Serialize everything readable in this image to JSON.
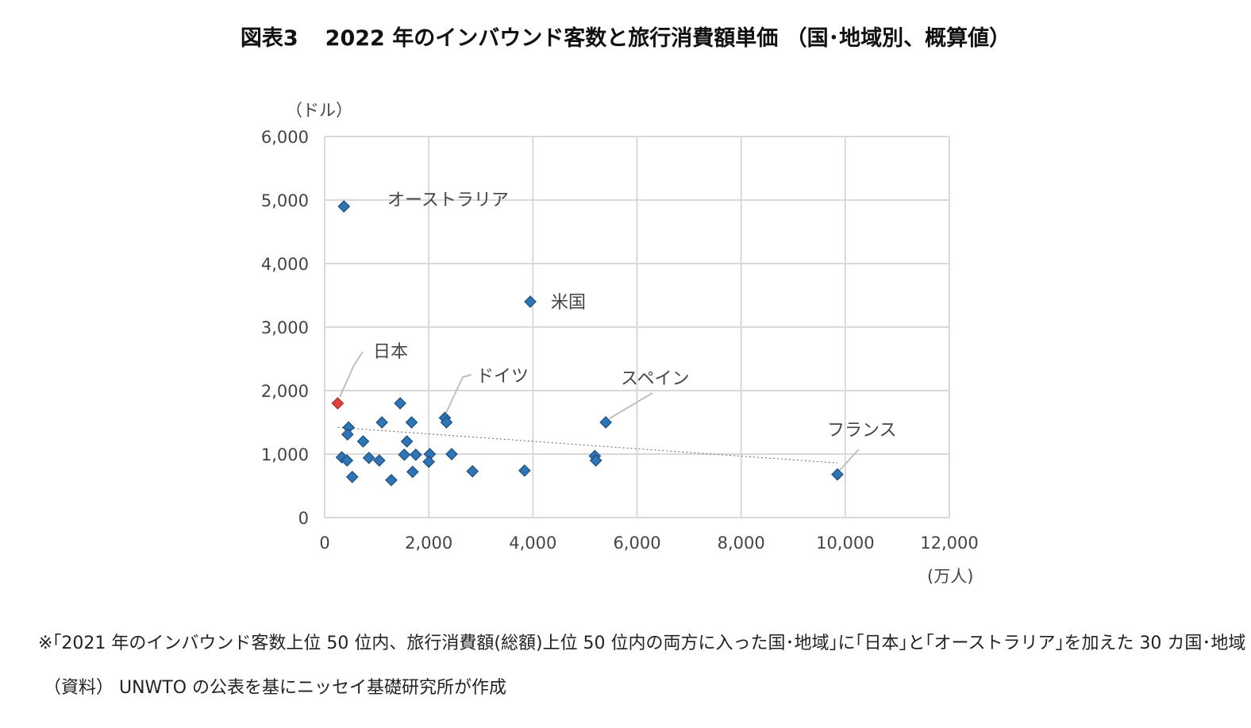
{
  "title": {
    "figure_no": "図表3",
    "text": "2022 年のインバウンド客数と旅行消費額単価 （国･地域別、概算値）"
  },
  "chart_data": {
    "type": "scatter",
    "title": "2022 年のインバウンド客数と旅行消費額単価 （国･地域別、概算値）",
    "xlabel": "(万人)",
    "ylabel": "（ドル）",
    "xlim": [
      0,
      12000
    ],
    "ylim": [
      0,
      6000
    ],
    "x_ticks": [
      0,
      2000,
      4000,
      6000,
      8000,
      10000,
      12000
    ],
    "x_tick_labels": [
      "0",
      "2,000",
      "4,000",
      "6,000",
      "8,000",
      "10,000",
      "12,000"
    ],
    "y_ticks": [
      0,
      1000,
      2000,
      3000,
      4000,
      5000,
      6000
    ],
    "y_tick_labels": [
      "0",
      "1,000",
      "2,000",
      "3,000",
      "4,000",
      "5,000",
      "6,000"
    ],
    "grid": true,
    "marker_color": "#2e75b6",
    "highlight_color": "#e0413a",
    "trendline": {
      "style": "dotted",
      "x": [
        250,
        9850
      ],
      "y": [
        1420,
        860
      ]
    },
    "points": [
      {
        "x": 370,
        "y": 4900,
        "label": "オーストラリア"
      },
      {
        "x": 3950,
        "y": 3400,
        "label": "米国"
      },
      {
        "x": 250,
        "y": 1800,
        "label": "日本",
        "highlight": true
      },
      {
        "x": 2310,
        "y": 1570,
        "label": "ドイツ"
      },
      {
        "x": 5400,
        "y": 1500,
        "label": "スペイン"
      },
      {
        "x": 9850,
        "y": 680,
        "label": "フランス"
      },
      {
        "x": 2340,
        "y": 1500
      },
      {
        "x": 1450,
        "y": 1800
      },
      {
        "x": 1100,
        "y": 1500
      },
      {
        "x": 1670,
        "y": 1500
      },
      {
        "x": 460,
        "y": 1420
      },
      {
        "x": 440,
        "y": 1310
      },
      {
        "x": 740,
        "y": 1200
      },
      {
        "x": 1580,
        "y": 1200
      },
      {
        "x": 330,
        "y": 950
      },
      {
        "x": 430,
        "y": 900
      },
      {
        "x": 850,
        "y": 940
      },
      {
        "x": 1050,
        "y": 900
      },
      {
        "x": 1530,
        "y": 990
      },
      {
        "x": 1750,
        "y": 990
      },
      {
        "x": 2020,
        "y": 1000
      },
      {
        "x": 2000,
        "y": 880
      },
      {
        "x": 2440,
        "y": 1000
      },
      {
        "x": 530,
        "y": 640
      },
      {
        "x": 1280,
        "y": 590
      },
      {
        "x": 1690,
        "y": 720
      },
      {
        "x": 2840,
        "y": 730
      },
      {
        "x": 3840,
        "y": 740
      },
      {
        "x": 5190,
        "y": 970
      },
      {
        "x": 5210,
        "y": 900
      }
    ]
  },
  "labels": {
    "australia": "オーストラリア",
    "usa": "米国",
    "japan": "日本",
    "germany": "ドイツ",
    "spain": "スペイン",
    "france": "フランス"
  },
  "note": "※｢2021 年のインバウンド客数上位 50 位内、旅行消費額(総額)上位 50 位内の両方に入った国･地域｣に｢日本｣と｢オーストラリア｣を加えた 30 カ国･地域",
  "source": "（資料） UNWTO の公表を基にニッセイ基礎研究所が作成"
}
